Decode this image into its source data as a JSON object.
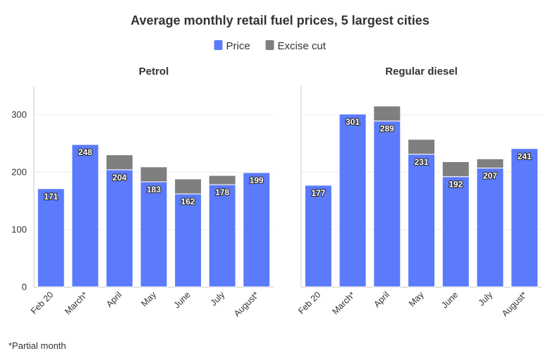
{
  "chart_data": {
    "type": "bar",
    "stacked": true,
    "title": "Average monthly retail fuel prices, 5 largest cities",
    "legend": {
      "placement": "top-center",
      "entries": [
        {
          "name": "Price",
          "color": "#5b7bfc"
        },
        {
          "name": "Excise cut",
          "color": "#7f7f7f"
        }
      ]
    },
    "footnote": "*Partial month",
    "ylim": [
      0,
      350
    ],
    "yticks": [
      0,
      100,
      200,
      300
    ],
    "grid": true,
    "panels": [
      {
        "title": "Petrol",
        "categories": [
          "Feb 20",
          "March*",
          "April",
          "May",
          "June",
          "July",
          "August*"
        ],
        "series": [
          {
            "name": "Price",
            "values": [
              171,
              248,
              204,
              183,
              162,
              178,
              199
            ]
          },
          {
            "name": "Excise cut",
            "values": [
              0,
              0,
              26,
              26,
              26,
              16,
              0
            ]
          }
        ]
      },
      {
        "title": "Regular diesel",
        "categories": [
          "Feb 20",
          "March*",
          "April",
          "May",
          "June",
          "July",
          "August*"
        ],
        "series": [
          {
            "name": "Price",
            "values": [
              177,
              301,
              289,
              231,
              192,
              207,
              241
            ]
          },
          {
            "name": "Excise cut",
            "values": [
              0,
              0,
              26,
              26,
              26,
              16,
              0
            ]
          }
        ]
      }
    ]
  }
}
